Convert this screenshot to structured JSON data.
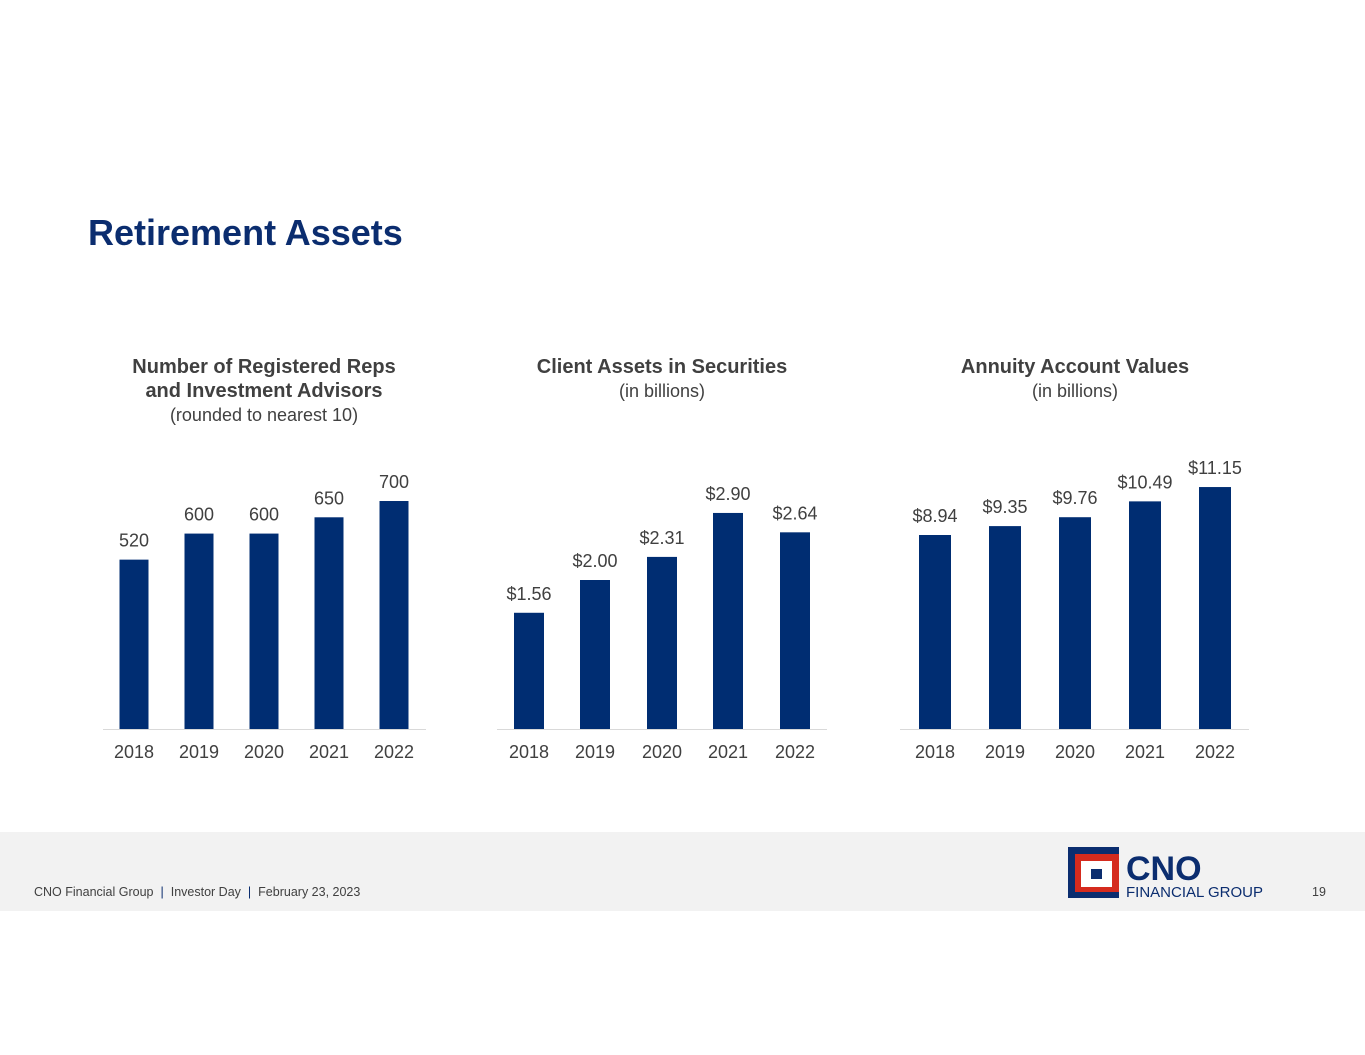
{
  "title": "Retirement Assets",
  "colors": {
    "bar": "#002d72",
    "title": "#0b2d6f",
    "text": "#404040",
    "footer_bg": "#f2f2f2",
    "logo_red": "#d52b1e"
  },
  "chart_data": [
    {
      "type": "bar",
      "title": "Number of Registered Reps and Investment Advisors",
      "title_lines": [
        "Number of Registered Reps",
        "and Investment Advisors"
      ],
      "subtitle": "(rounded to nearest 10)",
      "categories": [
        "2018",
        "2019",
        "2020",
        "2021",
        "2022"
      ],
      "values": [
        520,
        600,
        600,
        650,
        700
      ],
      "labels": [
        "520",
        "600",
        "600",
        "650",
        "700"
      ],
      "grid": false
    },
    {
      "type": "bar",
      "title": "Client Assets in Securities",
      "title_lines": [
        "Client Assets in Securities"
      ],
      "subtitle": "(in billions)",
      "categories": [
        "2018",
        "2019",
        "2020",
        "2021",
        "2022"
      ],
      "values": [
        1.56,
        2.0,
        2.31,
        2.9,
        2.64
      ],
      "labels": [
        "$1.56",
        "$2.00",
        "$2.31",
        "$2.90",
        "$2.64"
      ],
      "grid": false
    },
    {
      "type": "bar",
      "title": "Annuity Account Values",
      "title_lines": [
        "Annuity Account Values"
      ],
      "subtitle": "(in billions)",
      "categories": [
        "2018",
        "2019",
        "2020",
        "2021",
        "2022"
      ],
      "values": [
        8.94,
        9.35,
        9.76,
        10.49,
        11.15
      ],
      "labels": [
        "$8.94",
        "$9.35",
        "$9.76",
        "$10.49",
        "$11.15"
      ],
      "grid": false
    }
  ],
  "footer": {
    "company": "CNO Financial Group",
    "event": "Investor Day",
    "date": "February 23, 2023",
    "page": "19",
    "separator": "|"
  },
  "logo": {
    "line1": "CNO",
    "line2": "FINANCIAL GROUP"
  }
}
